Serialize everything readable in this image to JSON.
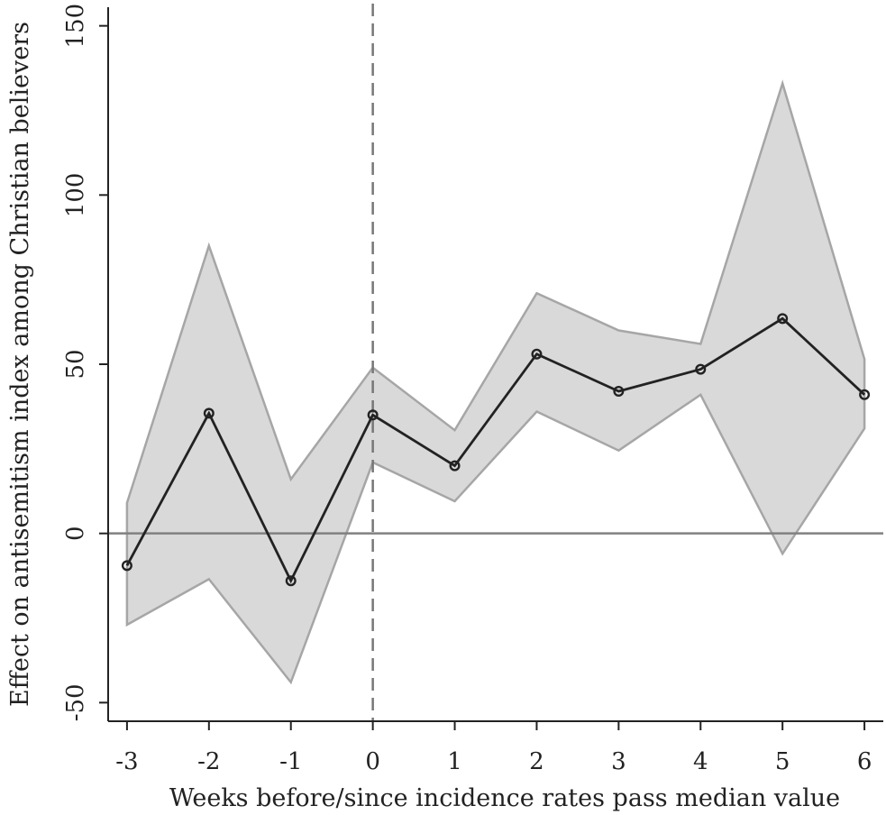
{
  "chart_data": {
    "type": "line",
    "xlabel": "Weeks before/since incidence rates pass median value",
    "ylabel": "Effect on antisemitism index among Christian believers",
    "x": [
      -3,
      -2,
      -1,
      0,
      1,
      2,
      3,
      4,
      5,
      6
    ],
    "x_tick_labels": [
      "-3",
      "-2",
      "-1",
      "0",
      "1",
      "2",
      "3",
      "4",
      "5",
      "6"
    ],
    "y_ticks": [
      -50,
      0,
      50,
      100,
      150
    ],
    "y_tick_labels": [
      "-50",
      "0",
      "50",
      "100",
      "150"
    ],
    "xlim": [
      -3.23,
      6.23
    ],
    "ylim": [
      -55.5,
      155.5
    ],
    "series": [
      {
        "values": [
          -9.5,
          35.5,
          -14,
          35,
          20,
          53,
          42,
          48.5,
          63.5,
          41
        ],
        "ci_lower": [
          -27,
          -13.5,
          -44,
          21,
          9.5,
          36,
          24.5,
          41,
          -6,
          31
        ],
        "ci_upper": [
          9,
          85,
          16,
          49,
          30.5,
          71,
          60,
          56,
          133,
          51.5
        ]
      }
    ],
    "reference_lines": {
      "horizontal_y": 0,
      "vertical_x": 0
    },
    "colors": {
      "line": "#222222",
      "band_fill": "#d9d9d9",
      "band_edge": "#a6a6a6",
      "zero_line": "#808080",
      "event_line": "#777777"
    },
    "grid": false
  }
}
